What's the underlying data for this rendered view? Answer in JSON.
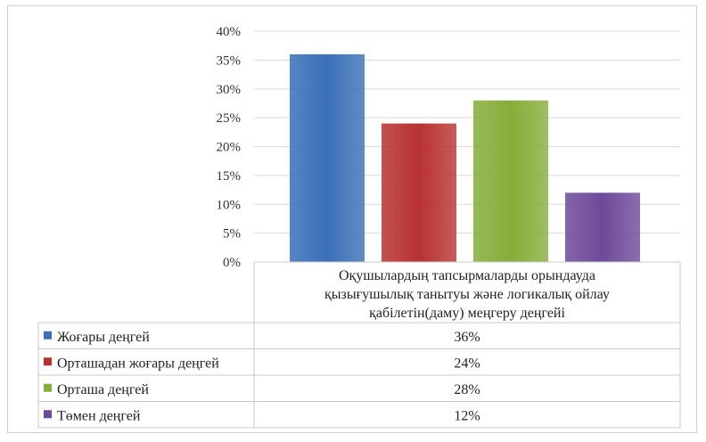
{
  "chart_data": {
    "type": "bar",
    "category_lines": [
      "Оқушылардың  тапсырмаларды орындауда",
      "қызығушылық танытуы және логикалық ойлау",
      "қабілетін(даму)  меңгеру деңгейі"
    ],
    "ylim": [
      0,
      40
    ],
    "yticks": [
      {
        "value": 0,
        "label": "0%"
      },
      {
        "value": 5,
        "label": "5%"
      },
      {
        "value": 10,
        "label": "10%"
      },
      {
        "value": 15,
        "label": "15%"
      },
      {
        "value": 20,
        "label": "20%"
      },
      {
        "value": 25,
        "label": "25%"
      },
      {
        "value": 30,
        "label": "30%"
      },
      {
        "value": 35,
        "label": "35%"
      },
      {
        "value": 40,
        "label": "40%"
      }
    ],
    "grid": true,
    "legend_placement": "data table below chart",
    "series": [
      {
        "name": "Жоғары деңгей",
        "value": 36,
        "label": "36%",
        "color": "#3a70b8"
      },
      {
        "name": "Орташадан жоғары деңгей",
        "value": 24,
        "label": "24%",
        "color": "#b83232"
      },
      {
        "name": "Орташа деңгей",
        "value": 28,
        "label": "28%",
        "color": "#86ad3a"
      },
      {
        "name": "Төмен деңгей",
        "value": 12,
        "label": "12%",
        "color": "#6e4a9a"
      }
    ]
  }
}
